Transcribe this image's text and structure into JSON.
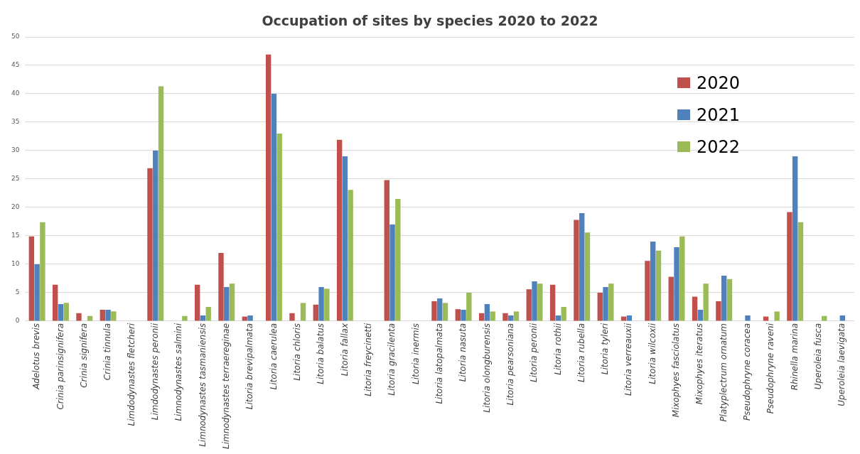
{
  "chart_data": {
    "type": "bar",
    "title": "Occupation of sites by species 2020 to 2022",
    "categories": [
      "Adelotus brevis",
      "Crinia parinsignifera",
      "Crinia signifera",
      "Crinia tinnula",
      "Limdodynastes fletcheri",
      "Limdodynastes peronii",
      "Limnodynastes salmini",
      "Limnodynastes tasmaniensis",
      "Limnodynastes terraereginae",
      "Litoria brevipalmata",
      "Litoria caerulea",
      "Litoria chloris",
      "Litoria balatus",
      "Litoria fallax",
      "Litoria freycinetti",
      "Litoria gracilenta",
      "Litoria inermis",
      "Litoria latopalmata",
      "Litoria nasuta",
      "Litoria olongburensis",
      "Litoria pearsoniana",
      "Litoria peronii",
      "Litoria rothii",
      "Litoria rubella",
      "Litoria tyleri",
      "Litoria verreauxii",
      "Litoria wilcoxii",
      "Mixophyes fasciolatus",
      "Mixophyes iteratus",
      "Platyplectrum ornatum",
      "Pseudophryne coracea",
      "Pseudophryne raveni",
      "Rhinella marina",
      "Uperoleia fusca",
      "Uperoleia laevigata"
    ],
    "series": [
      {
        "name": "2020",
        "color": "#c0504d",
        "values": [
          14.9,
          6.4,
          1.4,
          2,
          0,
          26.9,
          0,
          6.4,
          12,
          0.8,
          46.9,
          1.4,
          2.9,
          31.9,
          0,
          24.8,
          0,
          3.5,
          2.1,
          1.4,
          1.4,
          5.6,
          6.4,
          17.8,
          5,
          0.8,
          10.6,
          7.8,
          4.3,
          3.5,
          0,
          0.8,
          19.2,
          0,
          0
        ]
      },
      {
        "name": "2021",
        "color": "#4f81bd",
        "values": [
          10,
          3,
          0,
          2,
          0,
          30,
          0,
          1,
          6,
          1,
          40,
          0,
          6,
          29,
          0,
          17,
          0,
          4,
          2,
          3,
          1,
          7,
          1,
          19,
          6,
          1,
          14,
          13,
          2,
          8,
          1,
          0,
          29,
          0,
          1
        ]
      },
      {
        "name": "2022",
        "color": "#9bbb59",
        "values": [
          17.4,
          3.2,
          0.9,
          1.7,
          0,
          41.3,
          0.9,
          2.5,
          6.6,
          0,
          33,
          3.2,
          5.7,
          23.1,
          0,
          21.5,
          0,
          3.2,
          5,
          1.7,
          1.7,
          6.6,
          2.5,
          15.6,
          6.6,
          0,
          12.4,
          14.9,
          6.6,
          7.4,
          0,
          1.7,
          17.4,
          0.9,
          0
        ]
      }
    ],
    "ylim": [
      0,
      50
    ],
    "yticks": [
      0,
      5,
      10,
      15,
      20,
      25,
      30,
      35,
      40,
      45,
      50
    ],
    "grid": "y",
    "legend": "top right"
  }
}
